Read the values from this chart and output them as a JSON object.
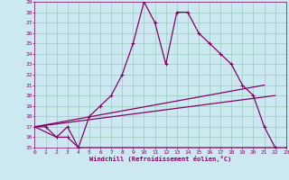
{
  "xlabel": "Windchill (Refroidissement éolien,°C)",
  "bg_color": "#cce8f0",
  "grid_color": "#99ccbb",
  "line_color": "#880066",
  "xmin": 0,
  "xmax": 23,
  "ymin": 15,
  "ymax": 29,
  "x_ticks": [
    0,
    1,
    2,
    3,
    4,
    5,
    6,
    7,
    8,
    9,
    10,
    11,
    12,
    13,
    14,
    15,
    16,
    17,
    18,
    19,
    20,
    21,
    22,
    23
  ],
  "y_ticks": [
    15,
    16,
    17,
    18,
    19,
    20,
    21,
    22,
    23,
    24,
    25,
    26,
    27,
    28,
    29
  ],
  "line1_x": [
    0,
    1,
    2,
    3,
    4,
    5,
    6,
    7,
    8,
    9,
    10,
    11,
    12,
    13,
    14,
    15,
    16,
    17,
    18,
    19,
    20,
    21,
    22
  ],
  "line1_y": [
    17,
    17,
    16,
    17,
    15,
    18,
    19,
    20,
    22,
    25,
    29,
    27,
    23,
    28,
    28,
    26,
    25,
    24,
    23,
    21,
    20,
    17,
    15
  ],
  "line2_x": [
    0,
    2,
    3,
    4,
    23
  ],
  "line2_y": [
    17,
    16,
    16,
    15,
    15
  ],
  "line3_x": [
    0,
    21
  ],
  "line3_y": [
    17,
    21
  ],
  "line4_x": [
    0,
    22
  ],
  "line4_y": [
    17,
    20
  ]
}
